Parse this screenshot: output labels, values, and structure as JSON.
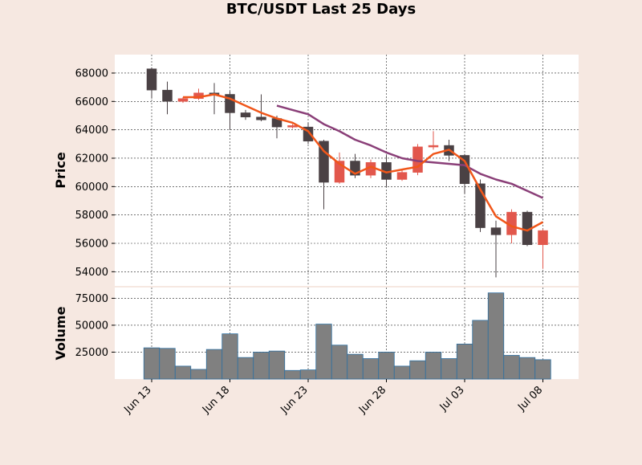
{
  "chart_data": {
    "type": "candlestick",
    "title": "BTC/USDT Last 25 Days",
    "xlabel": "",
    "ylabel_price": "Price",
    "ylabel_volume": "Volume",
    "x_tick_labels": [
      "Jun 13",
      "Jun 18",
      "Jun 23",
      "Jun 28",
      "Jul 03",
      "Jul 08"
    ],
    "price_ylim": [
      53000,
      69300
    ],
    "price_yticks": [
      54000,
      56000,
      58000,
      60000,
      62000,
      64000,
      66000,
      68000
    ],
    "volume_ylim": [
      0,
      85000
    ],
    "volume_yticks": [
      25000,
      50000,
      75000
    ],
    "grid": true,
    "colors": {
      "up": "#e2574c",
      "down": "#4a4144",
      "volume_bar": "#808080",
      "volume_edge": "#2e6fa0",
      "ma_short": "#f0561a",
      "ma_long": "#8a3f78",
      "panel": "#ffffff",
      "background": "#f6e8e1"
    },
    "dates": [
      "Jun 13",
      "Jun 14",
      "Jun 15",
      "Jun 16",
      "Jun 17",
      "Jun 18",
      "Jun 19",
      "Jun 20",
      "Jun 21",
      "Jun 22",
      "Jun 23",
      "Jun 24",
      "Jun 25",
      "Jun 26",
      "Jun 27",
      "Jun 28",
      "Jun 29",
      "Jun 30",
      "Jul 01",
      "Jul 02",
      "Jul 03",
      "Jul 04",
      "Jul 05",
      "Jul 06",
      "Jul 07",
      "Jul 08"
    ],
    "ohlc": [
      {
        "date": "Jun 13",
        "open": 68300,
        "high": 68400,
        "low": 66200,
        "close": 66800
      },
      {
        "date": "Jun 14",
        "open": 66800,
        "high": 67400,
        "low": 65100,
        "close": 66000
      },
      {
        "date": "Jun 15",
        "open": 66000,
        "high": 66300,
        "low": 65900,
        "close": 66200
      },
      {
        "date": "Jun 16",
        "open": 66200,
        "high": 66900,
        "low": 66100,
        "close": 66600
      },
      {
        "date": "Jun 17",
        "open": 66600,
        "high": 67300,
        "low": 65100,
        "close": 66500
      },
      {
        "date": "Jun 18",
        "open": 66500,
        "high": 66700,
        "low": 64000,
        "close": 65200
      },
      {
        "date": "Jun 19",
        "open": 65200,
        "high": 65400,
        "low": 64700,
        "close": 64900
      },
      {
        "date": "Jun 20",
        "open": 64900,
        "high": 66500,
        "low": 64600,
        "close": 64700
      },
      {
        "date": "Jun 21",
        "open": 64800,
        "high": 65000,
        "low": 63400,
        "close": 64200
      },
      {
        "date": "Jun 22",
        "open": 64200,
        "high": 64400,
        "low": 64100,
        "close": 64300
      },
      {
        "date": "Jun 23",
        "open": 64200,
        "high": 64500,
        "low": 63000,
        "close": 63200
      },
      {
        "date": "Jun 24",
        "open": 63200,
        "high": 63300,
        "low": 58400,
        "close": 60300
      },
      {
        "date": "Jun 25",
        "open": 60300,
        "high": 62400,
        "low": 60200,
        "close": 61800
      },
      {
        "date": "Jun 26",
        "open": 61800,
        "high": 62300,
        "low": 60600,
        "close": 60800
      },
      {
        "date": "Jun 27",
        "open": 60800,
        "high": 61900,
        "low": 60600,
        "close": 61700
      },
      {
        "date": "Jun 28",
        "open": 61700,
        "high": 62200,
        "low": 60000,
        "close": 60500
      },
      {
        "date": "Jun 29",
        "open": 60500,
        "high": 61200,
        "low": 60400,
        "close": 61000
      },
      {
        "date": "Jun 30",
        "open": 61000,
        "high": 63000,
        "low": 60800,
        "close": 62800
      },
      {
        "date": "Jul 01",
        "open": 62800,
        "high": 63900,
        "low": 62600,
        "close": 62900
      },
      {
        "date": "Jul 02",
        "open": 62900,
        "high": 63300,
        "low": 61800,
        "close": 62200
      },
      {
        "date": "Jul 03",
        "open": 62200,
        "high": 62300,
        "low": 59500,
        "close": 60200
      },
      {
        "date": "Jul 04",
        "open": 60200,
        "high": 60500,
        "low": 56800,
        "close": 57100
      },
      {
        "date": "Jul 05",
        "open": 57100,
        "high": 57600,
        "low": 53600,
        "close": 56600
      },
      {
        "date": "Jul 06",
        "open": 56600,
        "high": 58400,
        "low": 56000,
        "close": 58200
      },
      {
        "date": "Jul 07",
        "open": 58200,
        "high": 58300,
        "low": 55800,
        "close": 55900
      },
      {
        "date": "Jul 08",
        "open": 55900,
        "high": 57000,
        "low": 54200,
        "close": 56900
      }
    ],
    "volume": [
      29000,
      28500,
      12000,
      9000,
      27500,
      42000,
      20000,
      25000,
      26000,
      8000,
      8500,
      51000,
      31500,
      23000,
      19000,
      25000,
      12000,
      17000,
      25000,
      19000,
      32500,
      54500,
      80000,
      22000,
      20000,
      18000
    ],
    "ma_short": [
      null,
      null,
      66300,
      66300,
      66500,
      66200,
      65700,
      65200,
      64800,
      64500,
      63900,
      62500,
      61600,
      60900,
      61400,
      61000,
      61200,
      61400,
      62300,
      62600,
      61800,
      59800,
      57900,
      57200,
      56900,
      57500
    ],
    "ma_long": [
      null,
      null,
      null,
      null,
      null,
      null,
      null,
      null,
      65700,
      65400,
      65100,
      64400,
      63900,
      63300,
      62900,
      62400,
      62000,
      61800,
      61700,
      61600,
      61500,
      60900,
      60500,
      60200,
      59700,
      59200
    ]
  }
}
